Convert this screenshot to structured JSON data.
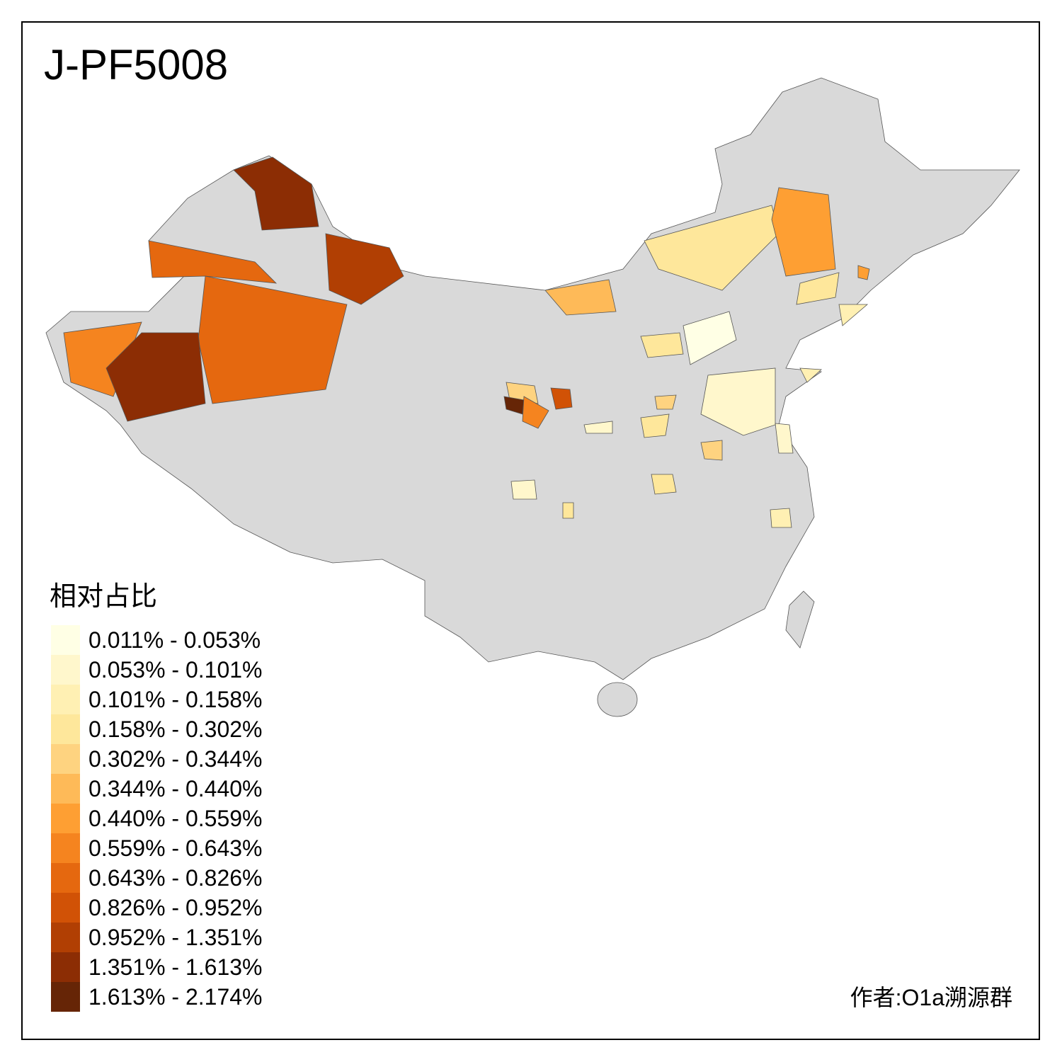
{
  "title": "J-PF5008",
  "legend": {
    "title": "相对占比",
    "items": [
      {
        "label": "0.011% - 0.053%",
        "color": "#ffffe5"
      },
      {
        "label": "0.053% - 0.101%",
        "color": "#fff7cc"
      },
      {
        "label": "0.101% - 0.158%",
        "color": "#fff0b3"
      },
      {
        "label": "0.158% - 0.302%",
        "color": "#fee79b"
      },
      {
        "label": "0.302% - 0.344%",
        "color": "#fed380"
      },
      {
        "label": "0.344% - 0.440%",
        "color": "#feba58"
      },
      {
        "label": "0.440% - 0.559%",
        "color": "#fe9f33"
      },
      {
        "label": "0.559% - 0.643%",
        "color": "#f5841f"
      },
      {
        "label": "0.643% - 0.826%",
        "color": "#e5680f"
      },
      {
        "label": "0.826% - 0.952%",
        "color": "#d15206"
      },
      {
        "label": "0.952% - 1.351%",
        "color": "#b13f03"
      },
      {
        "label": "1.351% - 1.613%",
        "color": "#8c2d04"
      },
      {
        "label": "1.613% - 2.174%",
        "color": "#662506"
      }
    ]
  },
  "credit": "作者:O1a溯源群"
}
